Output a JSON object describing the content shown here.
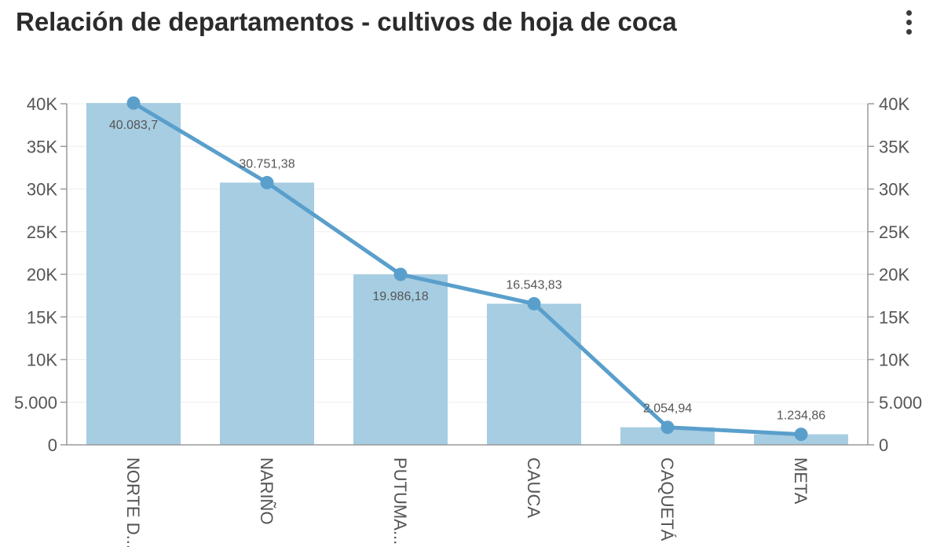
{
  "colors": {
    "bar": "#a6cde2",
    "line": "#5a9fcc",
    "grid": "#eeeeee",
    "axis": "#9a9a9a",
    "text": "#555555"
  },
  "header": {
    "menu_icon": "more-vert-icon"
  },
  "chart_data": {
    "type": "bar",
    "title": "Relación de departamentos - cultivos de hoja de coca",
    "categories": [
      "NORTE D...",
      "NARIÑO",
      "PUTUMA...",
      "CAUCA",
      "CAQUETÁ",
      "META"
    ],
    "values": [
      40083.7,
      30751.38,
      19986.18,
      16543.83,
      2054.94,
      1234.86
    ],
    "value_labels": [
      "40.083,7",
      "30.751,38",
      "19.986,18",
      "16.543,83",
      "2.054,94",
      "1.234,86"
    ],
    "line_overlay": true,
    "ylim": [
      0,
      40000
    ],
    "y_ticks": [
      0,
      5000,
      10000,
      15000,
      20000,
      25000,
      30000,
      35000,
      40000
    ],
    "y_tick_labels": [
      "0",
      "5.000",
      "10K",
      "15K",
      "20K",
      "25K",
      "30K",
      "35K",
      "40K"
    ],
    "y2_ticks": [
      0,
      5000,
      10000,
      15000,
      20000,
      25000,
      30000,
      35000,
      40000
    ],
    "y2_tick_labels": [
      "0",
      "5.000",
      "10K",
      "15K",
      "20K",
      "25K",
      "30K",
      "35K",
      "40K"
    ],
    "xlabel": "",
    "ylabel": "",
    "grid": true,
    "legend": "none"
  }
}
